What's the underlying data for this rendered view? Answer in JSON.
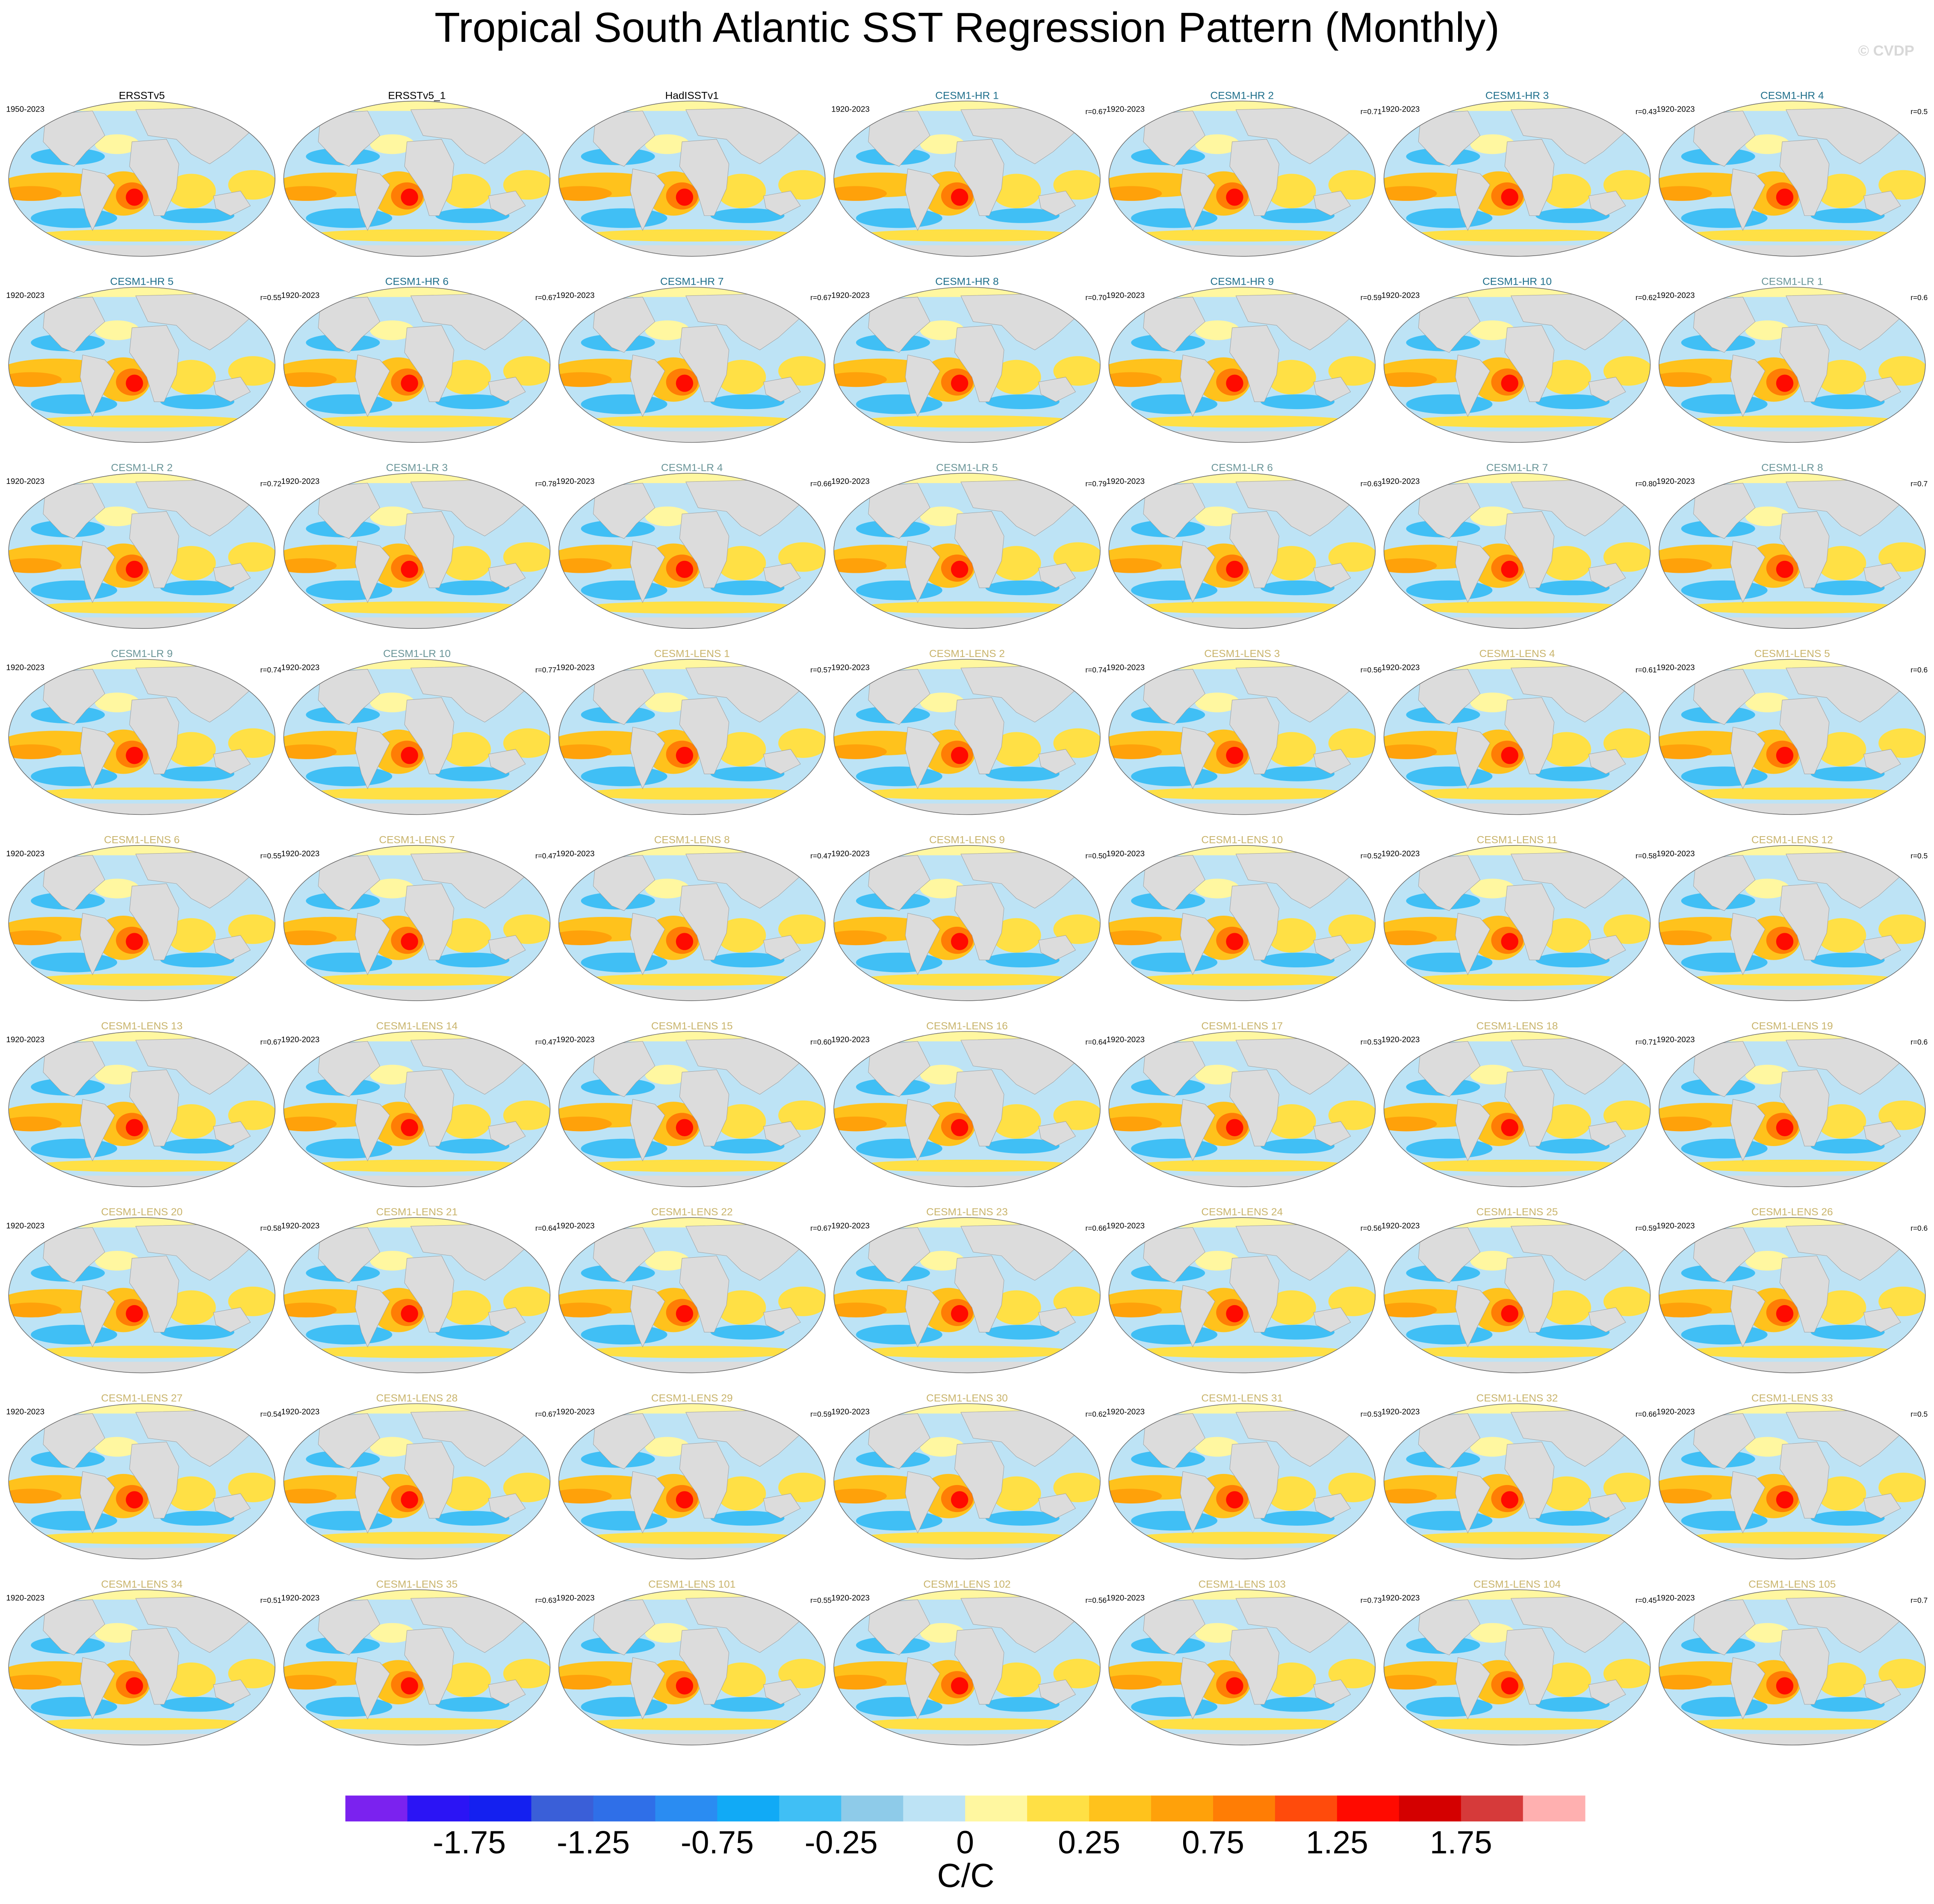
{
  "chart_data": {
    "type": "map",
    "title": "Tropical South Atlantic SST Regression Pattern (Monthly)",
    "watermark": "© CVDP",
    "panels": [
      {
        "title": "ERSSTv5",
        "period": "1950-2023",
        "color": "#000000"
      },
      {
        "title": "ERSSTv5_1",
        "color": "#000000"
      },
      {
        "title": "HadISSTv1",
        "color": "#000000"
      },
      {
        "title": "CESM1-HR 1",
        "period": "1920-2023",
        "r": "r=0.67",
        "color": "#1f6f8b"
      },
      {
        "title": "CESM1-HR 2",
        "period": "1920-2023",
        "r": "r=0.71",
        "color": "#1f6f8b"
      },
      {
        "title": "CESM1-HR 3",
        "period": "1920-2023",
        "r": "r=0.43",
        "color": "#1f6f8b"
      },
      {
        "title": "CESM1-HR 4",
        "period": "1920-2023",
        "r": "r=0.5",
        "color": "#1f6f8b"
      },
      {
        "title": "CESM1-HR 5",
        "period": "1920-2023",
        "r": "r=0.55",
        "color": "#1f6f8b"
      },
      {
        "title": "CESM1-HR 6",
        "period": "1920-2023",
        "r": "r=0.67",
        "color": "#1f6f8b"
      },
      {
        "title": "CESM1-HR 7",
        "period": "1920-2023",
        "r": "r=0.67",
        "color": "#1f6f8b"
      },
      {
        "title": "CESM1-HR 8",
        "period": "1920-2023",
        "r": "r=0.70",
        "color": "#1f6f8b"
      },
      {
        "title": "CESM1-HR 9",
        "period": "1920-2023",
        "r": "r=0.59",
        "color": "#1f6f8b"
      },
      {
        "title": "CESM1-HR 10",
        "period": "1920-2023",
        "r": "r=0.62",
        "color": "#1f6f8b"
      },
      {
        "title": "CESM1-LR 1",
        "period": "1920-2023",
        "r": "r=0.6",
        "color": "#6a9598"
      },
      {
        "title": "CESM1-LR 2",
        "period": "1920-2023",
        "r": "r=0.72",
        "color": "#6a9598"
      },
      {
        "title": "CESM1-LR 3",
        "period": "1920-2023",
        "r": "r=0.78",
        "color": "#6a9598"
      },
      {
        "title": "CESM1-LR 4",
        "period": "1920-2023",
        "r": "r=0.66",
        "color": "#6a9598"
      },
      {
        "title": "CESM1-LR 5",
        "period": "1920-2023",
        "r": "r=0.79",
        "color": "#6a9598"
      },
      {
        "title": "CESM1-LR 6",
        "period": "1920-2023",
        "r": "r=0.63",
        "color": "#6a9598"
      },
      {
        "title": "CESM1-LR 7",
        "period": "1920-2023",
        "r": "r=0.80",
        "color": "#6a9598"
      },
      {
        "title": "CESM1-LR 8",
        "period": "1920-2023",
        "r": "r=0.7",
        "color": "#6a9598"
      },
      {
        "title": "CESM1-LR 9",
        "period": "1920-2023",
        "r": "r=0.74",
        "color": "#6a9598"
      },
      {
        "title": "CESM1-LR 10",
        "period": "1920-2023",
        "r": "r=0.77",
        "color": "#6a9598"
      },
      {
        "title": "CESM1-LENS 1",
        "period": "1920-2023",
        "r": "r=0.57",
        "color": "#c9b46c"
      },
      {
        "title": "CESM1-LENS 2",
        "period": "1920-2023",
        "r": "r=0.74",
        "color": "#c9b46c"
      },
      {
        "title": "CESM1-LENS 3",
        "period": "1920-2023",
        "r": "r=0.56",
        "color": "#c9b46c"
      },
      {
        "title": "CESM1-LENS 4",
        "period": "1920-2023",
        "r": "r=0.61",
        "color": "#c9b46c"
      },
      {
        "title": "CESM1-LENS 5",
        "period": "1920-2023",
        "r": "r=0.6",
        "color": "#c9b46c"
      },
      {
        "title": "CESM1-LENS 6",
        "period": "1920-2023",
        "r": "r=0.55",
        "color": "#c9b46c"
      },
      {
        "title": "CESM1-LENS 7",
        "period": "1920-2023",
        "r": "r=0.47",
        "color": "#c9b46c"
      },
      {
        "title": "CESM1-LENS 8",
        "period": "1920-2023",
        "r": "r=0.47",
        "color": "#c9b46c"
      },
      {
        "title": "CESM1-LENS 9",
        "period": "1920-2023",
        "r": "r=0.50",
        "color": "#c9b46c"
      },
      {
        "title": "CESM1-LENS 10",
        "period": "1920-2023",
        "r": "r=0.52",
        "color": "#c9b46c"
      },
      {
        "title": "CESM1-LENS 11",
        "period": "1920-2023",
        "r": "r=0.58",
        "color": "#c9b46c"
      },
      {
        "title": "CESM1-LENS 12",
        "period": "1920-2023",
        "r": "r=0.5",
        "color": "#c9b46c"
      },
      {
        "title": "CESM1-LENS 13",
        "period": "1920-2023",
        "r": "r=0.67",
        "color": "#c9b46c"
      },
      {
        "title": "CESM1-LENS 14",
        "period": "1920-2023",
        "r": "r=0.47",
        "color": "#c9b46c"
      },
      {
        "title": "CESM1-LENS 15",
        "period": "1920-2023",
        "r": "r=0.60",
        "color": "#c9b46c"
      },
      {
        "title": "CESM1-LENS 16",
        "period": "1920-2023",
        "r": "r=0.64",
        "color": "#c9b46c"
      },
      {
        "title": "CESM1-LENS 17",
        "period": "1920-2023",
        "r": "r=0.53",
        "color": "#c9b46c"
      },
      {
        "title": "CESM1-LENS 18",
        "period": "1920-2023",
        "r": "r=0.71",
        "color": "#c9b46c"
      },
      {
        "title": "CESM1-LENS 19",
        "period": "1920-2023",
        "r": "r=0.6",
        "color": "#c9b46c"
      },
      {
        "title": "CESM1-LENS 20",
        "period": "1920-2023",
        "r": "r=0.58",
        "color": "#c9b46c"
      },
      {
        "title": "CESM1-LENS 21",
        "period": "1920-2023",
        "r": "r=0.64",
        "color": "#c9b46c"
      },
      {
        "title": "CESM1-LENS 22",
        "period": "1920-2023",
        "r": "r=0.67",
        "color": "#c9b46c"
      },
      {
        "title": "CESM1-LENS 23",
        "period": "1920-2023",
        "r": "r=0.66",
        "color": "#c9b46c"
      },
      {
        "title": "CESM1-LENS 24",
        "period": "1920-2023",
        "r": "r=0.56",
        "color": "#c9b46c"
      },
      {
        "title": "CESM1-LENS 25",
        "period": "1920-2023",
        "r": "r=0.59",
        "color": "#c9b46c"
      },
      {
        "title": "CESM1-LENS 26",
        "period": "1920-2023",
        "r": "r=0.6",
        "color": "#c9b46c"
      },
      {
        "title": "CESM1-LENS 27",
        "period": "1920-2023",
        "r": "r=0.54",
        "color": "#c9b46c"
      },
      {
        "title": "CESM1-LENS 28",
        "period": "1920-2023",
        "r": "r=0.67",
        "color": "#c9b46c"
      },
      {
        "title": "CESM1-LENS 29",
        "period": "1920-2023",
        "r": "r=0.59",
        "color": "#c9b46c"
      },
      {
        "title": "CESM1-LENS 30",
        "period": "1920-2023",
        "r": "r=0.62",
        "color": "#c9b46c"
      },
      {
        "title": "CESM1-LENS 31",
        "period": "1920-2023",
        "r": "r=0.53",
        "color": "#c9b46c"
      },
      {
        "title": "CESM1-LENS 32",
        "period": "1920-2023",
        "r": "r=0.66",
        "color": "#c9b46c"
      },
      {
        "title": "CESM1-LENS 33",
        "period": "1920-2023",
        "r": "r=0.5",
        "color": "#c9b46c"
      },
      {
        "title": "CESM1-LENS 34",
        "period": "1920-2023",
        "r": "r=0.51",
        "color": "#c9b46c"
      },
      {
        "title": "CESM1-LENS 35",
        "period": "1920-2023",
        "r": "r=0.63",
        "color": "#c9b46c"
      },
      {
        "title": "CESM1-LENS 101",
        "period": "1920-2023",
        "r": "r=0.55",
        "color": "#c9b46c"
      },
      {
        "title": "CESM1-LENS 102",
        "period": "1920-2023",
        "r": "r=0.56",
        "color": "#c9b46c"
      },
      {
        "title": "CESM1-LENS 103",
        "period": "1920-2023",
        "r": "r=0.73",
        "color": "#c9b46c"
      },
      {
        "title": "CESM1-LENS 104",
        "period": "1920-2023",
        "r": "r=0.45",
        "color": "#c9b46c"
      },
      {
        "title": "CESM1-LENS 105",
        "period": "1920-2023",
        "r": "r=0.7",
        "color": "#c9b46c"
      }
    ],
    "colorbar": {
      "label": "C/C",
      "colors": [
        "#7b22ef",
        "#2b14f5",
        "#1420f0",
        "#3a5fd8",
        "#2f6fe8",
        "#2a8cf2",
        "#11aaf6",
        "#40bff5",
        "#8ecbe9",
        "#bde3f5",
        "#fff7a0",
        "#ffe045",
        "#ffc21c",
        "#ffa10a",
        "#ff7d05",
        "#ff4b0c",
        "#ff0a00",
        "#d40000",
        "#d63a3a",
        "#ffb0b0"
      ],
      "levels": [
        -2,
        -1.75,
        -1.5,
        -1.25,
        -1,
        -0.75,
        -0.5,
        -0.25,
        -0.1,
        0,
        0.1,
        0.25,
        0.5,
        0.75,
        1,
        1.25,
        1.5,
        1.75,
        2
      ],
      "ticks": [
        -1.75,
        -1.25,
        -0.75,
        -0.25,
        0,
        0.25,
        0.75,
        1.25,
        1.75
      ]
    }
  }
}
